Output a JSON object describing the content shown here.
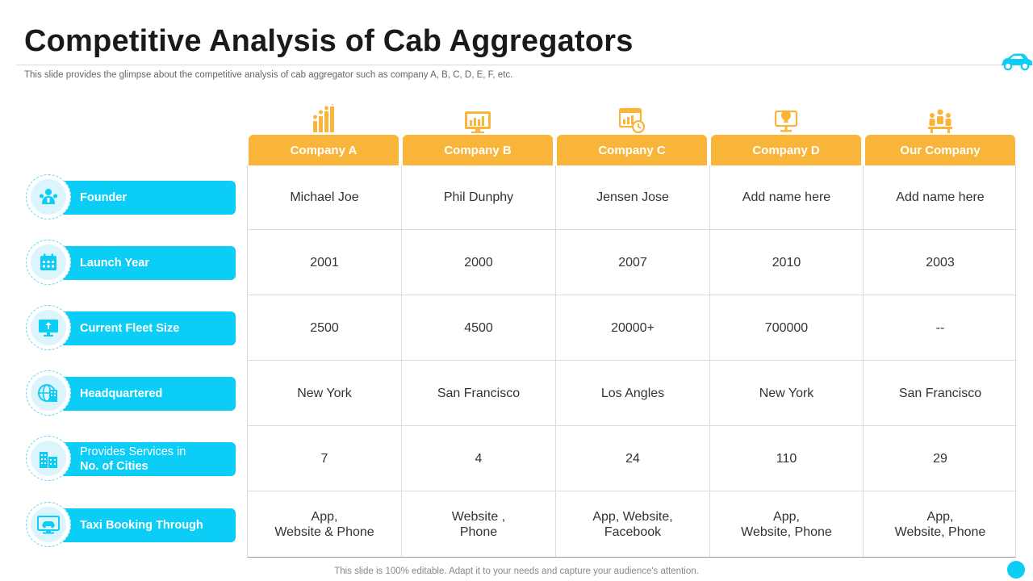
{
  "slide": {
    "title": "Competitive Analysis of Cab Aggregators",
    "subtitle": "This slide provides the glimpse about the competitive analysis of cab aggregator such as company A, B, C, D, E, F, etc.",
    "footer": "This slide is 100% editable. Adapt it to your needs and capture your audience's attention."
  },
  "colors": {
    "accent_orange": "#f9b43a",
    "accent_cyan": "#0bcdf5"
  },
  "columns": [
    {
      "label": "Company A",
      "icon": "bar-chart-icon"
    },
    {
      "label": "Company B",
      "icon": "monitor-chart-icon"
    },
    {
      "label": "Company C",
      "icon": "browser-clock-icon"
    },
    {
      "label": "Company D",
      "icon": "idea-board-icon"
    },
    {
      "label": "Our Company",
      "icon": "team-icon"
    }
  ],
  "rows": [
    {
      "label": "Founder",
      "icon": "founder-icon",
      "cells": [
        "Michael Joe",
        "Phil Dunphy",
        "Jensen Jose",
        "Add name here",
        "Add name here"
      ]
    },
    {
      "label": "Launch Year",
      "icon": "calendar-icon",
      "cells": [
        "2001",
        "2000",
        "2007",
        "2010",
        "2003"
      ]
    },
    {
      "label": "Current Fleet Size",
      "icon": "monitor-upload-icon",
      "cells": [
        "2500",
        "4500",
        "20000+",
        "700000",
        "--"
      ]
    },
    {
      "label": "Headquartered",
      "icon": "globe-building-icon",
      "cells": [
        "New York",
        "San Francisco",
        "Los Angles",
        "New York",
        "San Francisco"
      ]
    },
    {
      "label_top": "Provides Services in",
      "label": "No. of Cities",
      "icon": "city-icon",
      "cells": [
        "7",
        "4",
        "24",
        "110",
        "29"
      ]
    },
    {
      "label": "Taxi Booking Through",
      "icon": "taxi-screen-icon",
      "cells": [
        "App,\nWebsite & Phone",
        "Website ,\nPhone",
        "App, Website,\nFacebook",
        "App,\nWebsite, Phone",
        "App,\nWebsite, Phone"
      ]
    }
  ]
}
